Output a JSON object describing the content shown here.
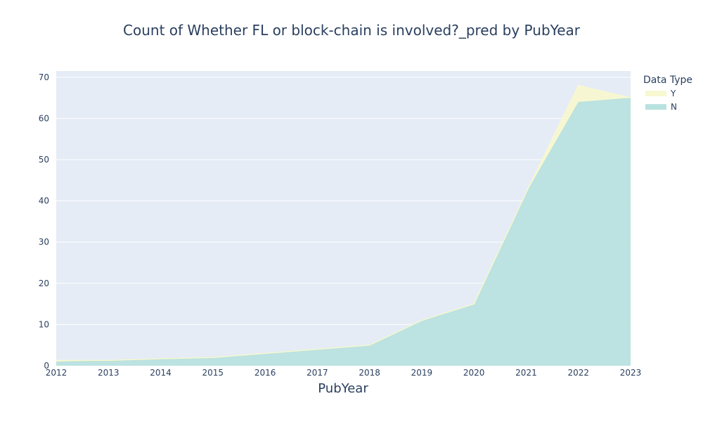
{
  "chart_data": {
    "type": "area",
    "title": "Count of Whether FL or block-chain is involved?_pred by PubYear",
    "xlabel": "PubYear",
    "ylabel": "",
    "x": [
      2012,
      2013,
      2014,
      2015,
      2016,
      2017,
      2018,
      2019,
      2020,
      2021,
      2022,
      2023
    ],
    "xlim": [
      2012,
      2023
    ],
    "ylim": [
      0,
      71.5
    ],
    "yticks": [
      0,
      10,
      20,
      30,
      40,
      50,
      60,
      70
    ],
    "stacked": true,
    "grid": true,
    "background": "#e5ecf6",
    "legend": {
      "title": "Data Type",
      "position": "top-right, outside plot"
    },
    "series": [
      {
        "name": "N",
        "color": "#b9e2df",
        "values": [
          1,
          1.3,
          1.7,
          2,
          3,
          4,
          5,
          11,
          15,
          42,
          64,
          65
        ]
      },
      {
        "name": "Y",
        "color": "#f7f8d0",
        "values": [
          0.3,
          0,
          0,
          0,
          0,
          0,
          0,
          0,
          0,
          0,
          4,
          0
        ]
      }
    ]
  }
}
